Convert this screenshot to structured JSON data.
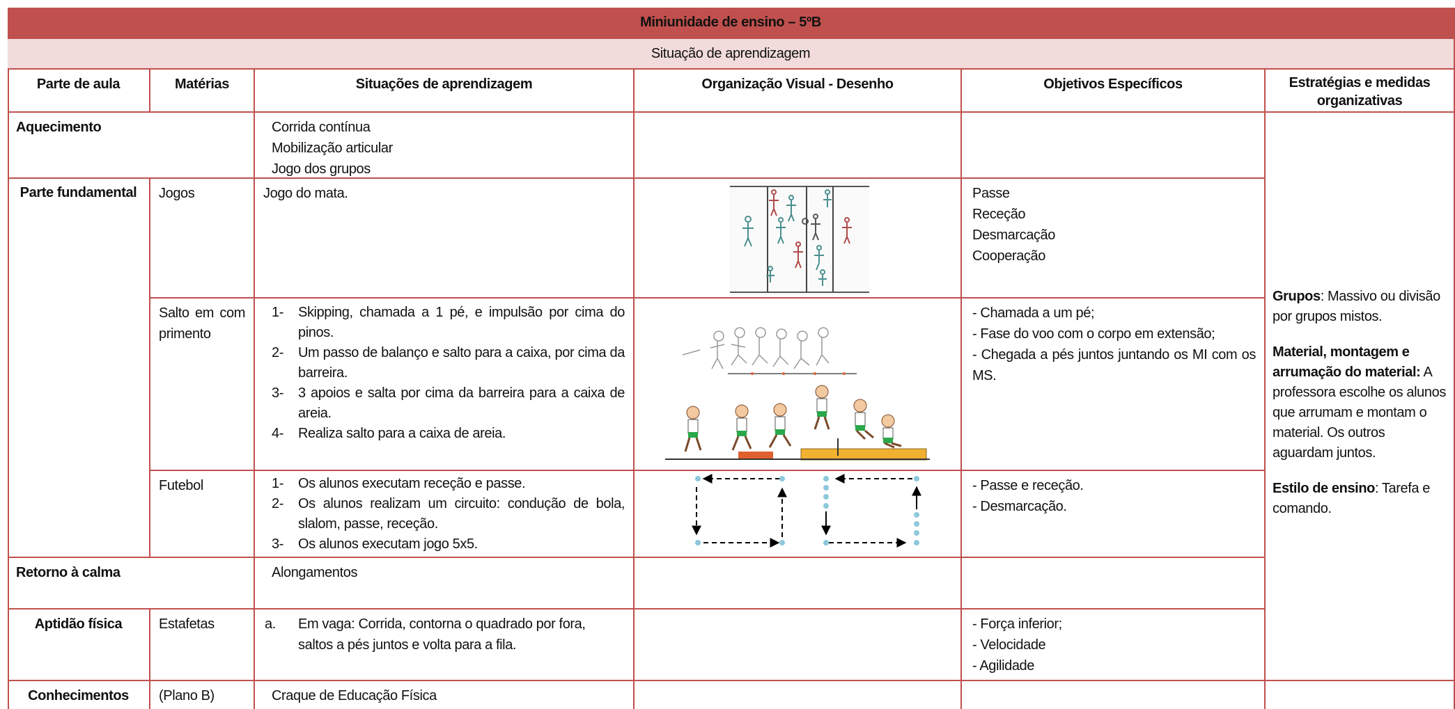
{
  "header": {
    "title": "Miniunidade de ensino – 5ºB",
    "subtitle": "Situação de aprendizagem"
  },
  "table": {
    "columns": [
      "Parte de aula",
      "Matérias",
      "Situações de aprendizagem",
      "Organização Visual - Desenho",
      "Objetivos Específicos",
      "Estratégias e medidas organizativas"
    ],
    "rows": [
      {
        "part": "Aquecimento",
        "situations": [
          "Corrida contínua",
          "Mobilização articular",
          "Jogo dos grupos"
        ]
      },
      {
        "part": "Parte fundamental",
        "subject": "Jogos",
        "situations": [
          "Jogo do mata."
        ],
        "objectives": [
          "Passe",
          "Receção",
          "Desmarcação",
          "Cooperação"
        ]
      },
      {
        "subject": "Salto em comprimento",
        "situations": [
          {
            "marker": "1-",
            "text": "Skipping, chamada a 1 pé, e impulsão por cima do pinos."
          },
          {
            "marker": "2-",
            "text": "Um passo de balanço e salto para a caixa, por cima da barreira."
          },
          {
            "marker": "3-",
            "text": "3 apoios e salta por cima da barreira para a caixa de areia."
          },
          {
            "marker": "4-",
            "text": "Realiza salto para a caixa de areia."
          }
        ],
        "objectives": [
          "- Chamada a um pé;",
          "- Fase do voo com o corpo em extensão;",
          "- Chegada a pés juntos juntando os MI com os MS."
        ]
      },
      {
        "subject": "Futebol",
        "situations": [
          {
            "marker": "1-",
            "text": "Os alunos executam receção e passe."
          },
          {
            "marker": "2-",
            "text": "Os alunos realizam um circuito: condução de bola, slalom, passe, receção."
          },
          {
            "marker": "3-",
            "text": "Os alunos executam jogo 5x5."
          }
        ],
        "objectives": [
          "- Passe e receção.",
          "- Desmarcação."
        ]
      },
      {
        "part": "Retorno à calma",
        "situations": [
          "Alongamentos"
        ]
      },
      {
        "part": "Aptidão física",
        "subject": "Estafetas",
        "situations": [
          {
            "marker": "a.",
            "text": "Em vaga: Corrida, contorna o quadrado por fora, saltos a pés juntos e volta para a fila."
          }
        ],
        "objectives": [
          "- Força inferior;",
          "- Velocidade",
          "- Agilidade"
        ]
      },
      {
        "part": "Conhecimentos",
        "subject": "(Plano B)",
        "situations": [
          "Craque de Educação Física"
        ]
      }
    ],
    "strategies": [
      {
        "label": "Grupos",
        "text": ": Massivo ou divisão por grupos mistos."
      },
      {
        "label": "Material, montagem e arrumação do material:",
        "text": " A professora escolhe os alunos que arrumam e montam o material. Os outros aguardam juntos."
      },
      {
        "label": "Estilo de ensino",
        "text": ": Tarefa e comando."
      }
    ]
  }
}
